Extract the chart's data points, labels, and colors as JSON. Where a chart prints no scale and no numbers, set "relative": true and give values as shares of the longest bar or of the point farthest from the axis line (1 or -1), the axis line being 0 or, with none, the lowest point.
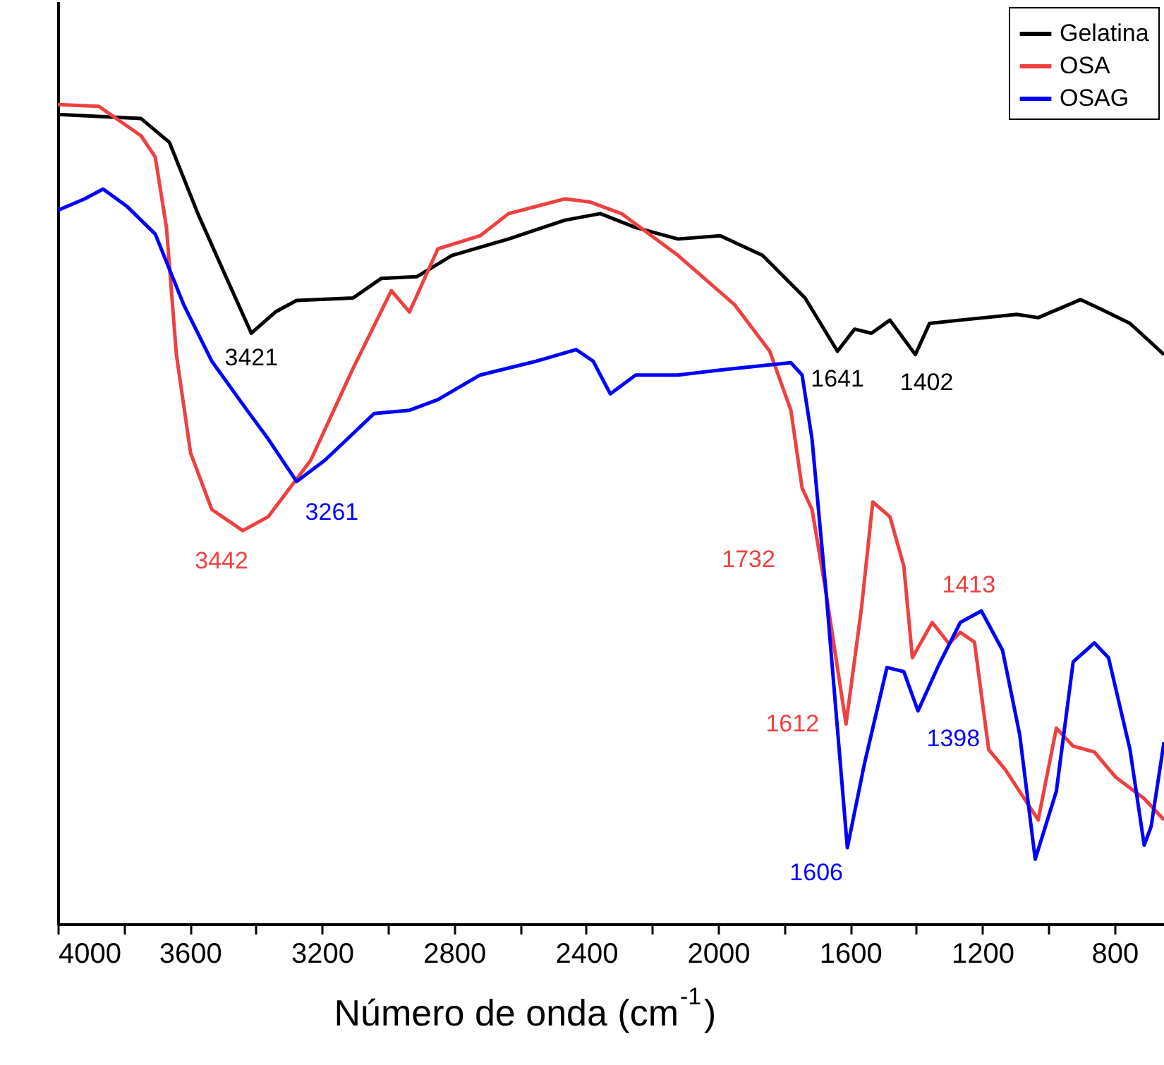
{
  "chart_data": {
    "type": "line",
    "relative": true,
    "xlabel": "Número de onda (cm$^{-1}$)",
    "xlim": [
      4000,
      650
    ],
    "xticks": [
      4000,
      {
        "value": 3800,
        "label": null
      },
      3600,
      {
        "value": 3400,
        "label": null
      },
      3200,
      {
        "value": 3000,
        "label": null
      },
      2800,
      {
        "value": 2600,
        "label": null
      },
      2400,
      {
        "value": 2200,
        "label": null
      },
      2000,
      {
        "value": 1800,
        "label": null
      },
      1600,
      {
        "value": 1400,
        "label": null
      },
      1200,
      {
        "value": 1000,
        "label": null
      },
      800
    ],
    "legend": "top right",
    "grid": false,
    "line_style": "solid",
    "marker": "none",
    "series": [
      {
        "name": "Gelatina",
        "color": "#000000",
        "x": [
          4000,
          3748,
          3662,
          3576,
          3491,
          3414,
          3341,
          3277,
          3106,
          3020,
          2913,
          2806,
          2635,
          2464,
          2357,
          2250,
          2122,
          1994,
          1866,
          1737,
          1639,
          1587,
          1536,
          1480,
          1403,
          1360,
          1267,
          1096,
          1031,
          903,
          839,
          753,
          650
        ],
        "values": [
          0.988,
          0.983,
          0.954,
          0.867,
          0.79,
          0.721,
          0.747,
          0.761,
          0.764,
          0.788,
          0.79,
          0.816,
          0.836,
          0.859,
          0.867,
          0.85,
          0.836,
          0.84,
          0.816,
          0.764,
          0.699,
          0.726,
          0.721,
          0.737,
          0.695,
          0.733,
          0.737,
          0.744,
          0.74,
          0.762,
          0.75,
          0.733,
          0.695
        ]
      },
      {
        "name": "OSA",
        "color": "#ef4040",
        "x": [
          4000,
          3876,
          3748,
          3705,
          3671,
          3641,
          3598,
          3534,
          3440,
          3363,
          3234,
          3106,
          2990,
          2935,
          2849,
          2721,
          2635,
          2464,
          2387,
          2293,
          2122,
          1951,
          1844,
          1780,
          1746,
          1716,
          1673,
          1613,
          1566,
          1532,
          1480,
          1438,
          1412,
          1352,
          1301,
          1267,
          1224,
          1181,
          1130,
          1031,
          976,
          925,
          861,
          796,
          710,
          650
        ],
        "values": [
          1.0,
          0.998,
          0.962,
          0.936,
          0.85,
          0.695,
          0.575,
          0.506,
          0.48,
          0.497,
          0.566,
          0.678,
          0.773,
          0.747,
          0.824,
          0.84,
          0.867,
          0.885,
          0.881,
          0.867,
          0.816,
          0.756,
          0.699,
          0.627,
          0.532,
          0.506,
          0.403,
          0.244,
          0.386,
          0.515,
          0.497,
          0.437,
          0.325,
          0.368,
          0.342,
          0.356,
          0.344,
          0.213,
          0.188,
          0.127,
          0.239,
          0.217,
          0.21,
          0.179,
          0.153,
          0.127
        ]
      },
      {
        "name": "OSAG",
        "color": "#0000ff",
        "x": [
          4000,
          3919,
          3863,
          3791,
          3705,
          3619,
          3534,
          3427,
          3363,
          3277,
          3191,
          3042,
          2935,
          2849,
          2721,
          2550,
          2430,
          2379,
          2327,
          2250,
          2122,
          1951,
          1780,
          1746,
          1716,
          1673,
          1609,
          1557,
          1489,
          1438,
          1395,
          1331,
          1267,
          1203,
          1139,
          1087,
          1040,
          976,
          925,
          861,
          818,
          753,
          710,
          689,
          650
        ],
        "values": [
          0.871,
          0.885,
          0.897,
          0.876,
          0.842,
          0.756,
          0.687,
          0.627,
          0.592,
          0.54,
          0.566,
          0.623,
          0.627,
          0.64,
          0.67,
          0.687,
          0.701,
          0.687,
          0.647,
          0.67,
          0.67,
          0.678,
          0.685,
          0.67,
          0.592,
          0.403,
          0.093,
          0.196,
          0.313,
          0.308,
          0.26,
          0.317,
          0.368,
          0.382,
          0.334,
          0.231,
          0.079,
          0.162,
          0.32,
          0.343,
          0.325,
          0.213,
          0.096,
          0.119,
          0.222
        ]
      }
    ],
    "annotations": [
      {
        "text": "3421",
        "x": 3414,
        "y": 0.721
      },
      {
        "text": "3442",
        "x": 3440,
        "y": 0.48
      },
      {
        "text": "3261",
        "x": 3277,
        "y": 0.54
      },
      {
        "text": "1641",
        "x": 1639,
        "y": 0.699
      },
      {
        "text": "1402",
        "x": 1403,
        "y": 0.695
      },
      {
        "text": "1732",
        "x": 1716,
        "y": 0.506
      },
      {
        "text": "1413",
        "x": 1412,
        "y": 0.325
      },
      {
        "text": "1612",
        "x": 1613,
        "y": 0.244
      },
      {
        "text": "1606",
        "x": 1609,
        "y": 0.093
      },
      {
        "text": "1398",
        "x": 1395,
        "y": 0.26
      }
    ]
  }
}
